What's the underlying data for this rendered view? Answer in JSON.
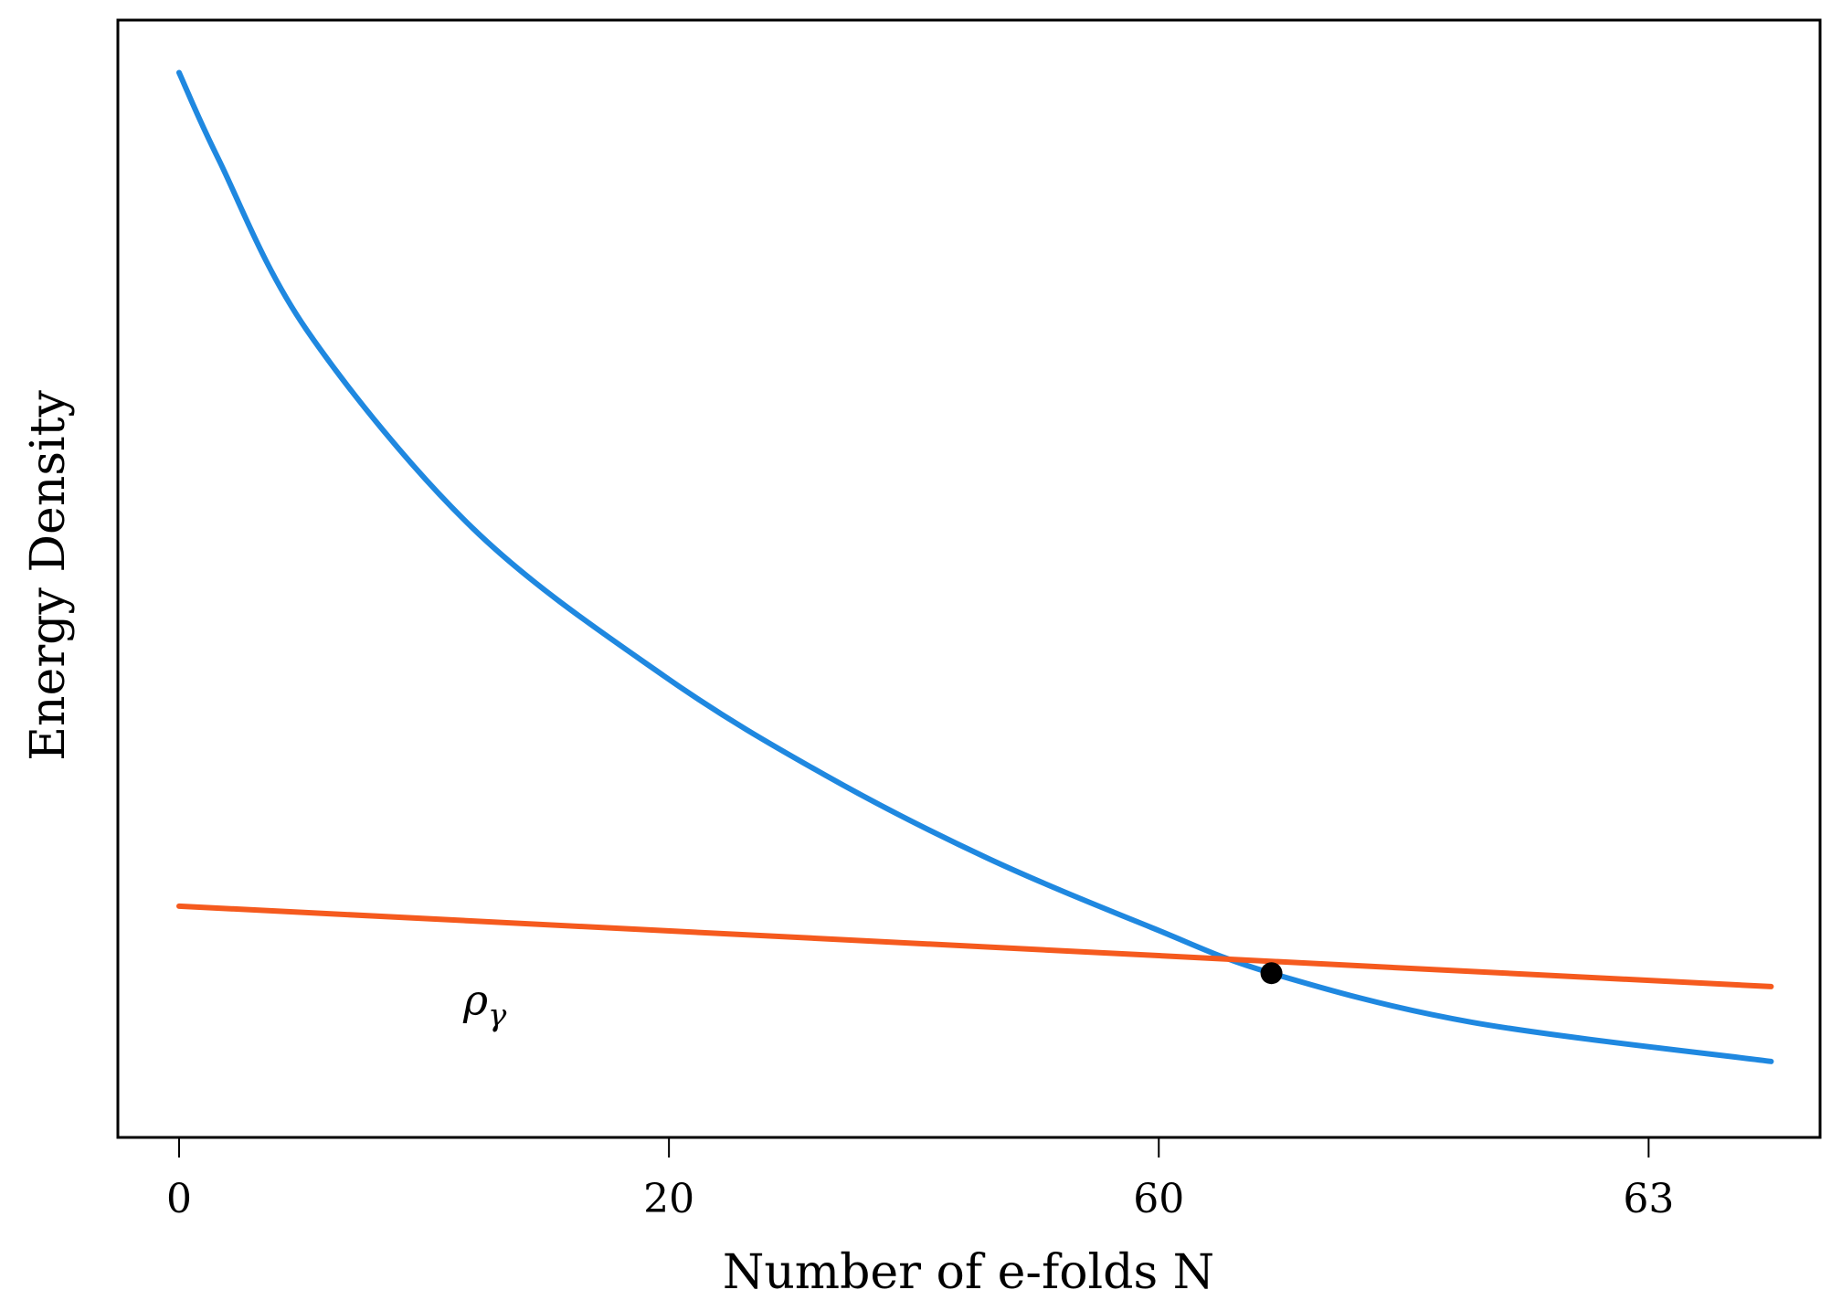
{
  "chart_data": {
    "type": "line",
    "title": "",
    "xlabel": "Number of e-folds N",
    "ylabel": "Energy Density",
    "xticks": [
      {
        "pos": 0,
        "label": "0"
      },
      {
        "pos": 1,
        "label": "20"
      },
      {
        "pos": 2,
        "label": "60"
      },
      {
        "pos": 3,
        "label": "63"
      }
    ],
    "xlim": [
      -0.125,
      3.35
    ],
    "ylim": [
      0,
      1
    ],
    "yticks": [],
    "grid": false,
    "legend": "none",
    "series": [
      {
        "color": "#1f88e0",
        "x": [
          0,
          0.08,
          0.26,
          0.6,
          0.99,
          1.32,
          1.65,
          1.99,
          2.23,
          2.64,
          3.25
        ],
        "y": [
          0.953,
          0.876,
          0.723,
          0.545,
          0.413,
          0.324,
          0.25,
          0.187,
          0.147,
          0.103,
          0.068
        ]
      },
      {
        "name": "ρ_γ",
        "color": "#f55a1e",
        "x": [
          0,
          3.25
        ],
        "y": [
          0.207,
          0.135
        ]
      }
    ],
    "points": [
      {
        "x": 2.23,
        "y": 0.147,
        "color": "#000000"
      }
    ],
    "annotations": [
      {
        "text": "ρ",
        "subscript": "γ",
        "x": 0.58,
        "y": 0.11
      }
    ]
  }
}
